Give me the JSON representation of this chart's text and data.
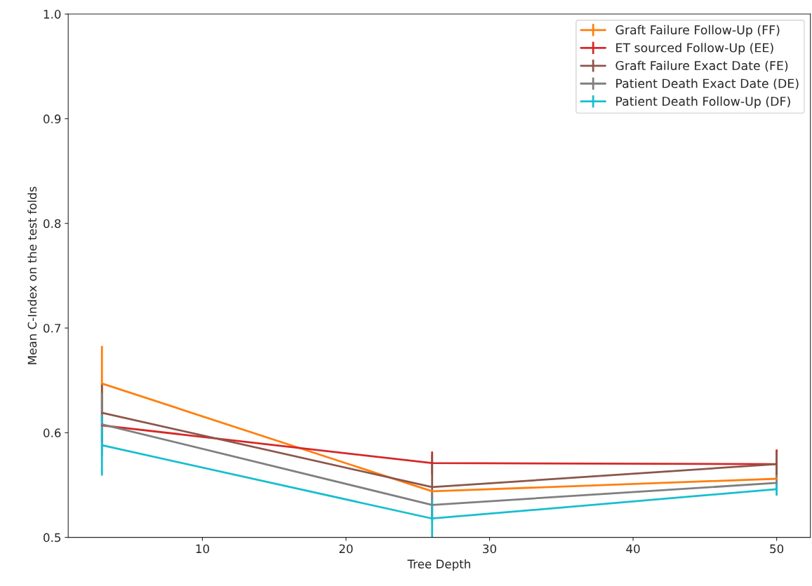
{
  "chart_data": {
    "type": "line",
    "xlabel": "Tree Depth",
    "ylabel": "Mean C-Index on the test folds",
    "x": [
      3,
      26,
      50
    ],
    "series": [
      {
        "name": "Graft Failure Follow-Up (FF)",
        "color": "#ff7f0e",
        "values": [
          0.647,
          0.544,
          0.556
        ],
        "errors": [
          0.036,
          null,
          null
        ]
      },
      {
        "name": "ET sourced Follow-Up (EE)",
        "color": "#d62728",
        "values": [
          0.607,
          0.571,
          0.57
        ],
        "errors": [
          null,
          0.011,
          0.014
        ]
      },
      {
        "name": "Graft Failure Exact Date (FE)",
        "color": "#8c564b",
        "values": [
          0.619,
          0.548,
          0.57
        ],
        "errors": [
          0.028,
          0.031,
          0.012
        ]
      },
      {
        "name": "Patient Death Exact Date (DE)",
        "color": "#7f7f7f",
        "values": [
          0.608,
          0.531,
          0.552
        ],
        "errors": [
          0.03,
          0.015,
          0.008
        ]
      },
      {
        "name": "Patient Death Follow-Up (DF)",
        "color": "#17becf",
        "values": [
          0.588,
          0.518,
          0.546
        ],
        "errors": [
          0.029,
          0.018,
          0.006
        ]
      }
    ],
    "xlim": [
      0.65,
      52.35
    ],
    "ylim": [
      0.5,
      1.0
    ],
    "xticks": [
      10,
      20,
      30,
      40,
      50
    ],
    "yticks": [
      {
        "value": 0.5,
        "label": "0.5"
      },
      {
        "value": 0.6,
        "label": "0.6"
      },
      {
        "value": 0.7,
        "label": "0.7"
      },
      {
        "value": 0.8,
        "label": "0.8"
      },
      {
        "value": 0.9,
        "label": "0.9"
      },
      {
        "value": 1.0,
        "label": "1.0"
      }
    ],
    "legend": "top right",
    "grid": false,
    "marker": "none",
    "line_style": "solid"
  }
}
